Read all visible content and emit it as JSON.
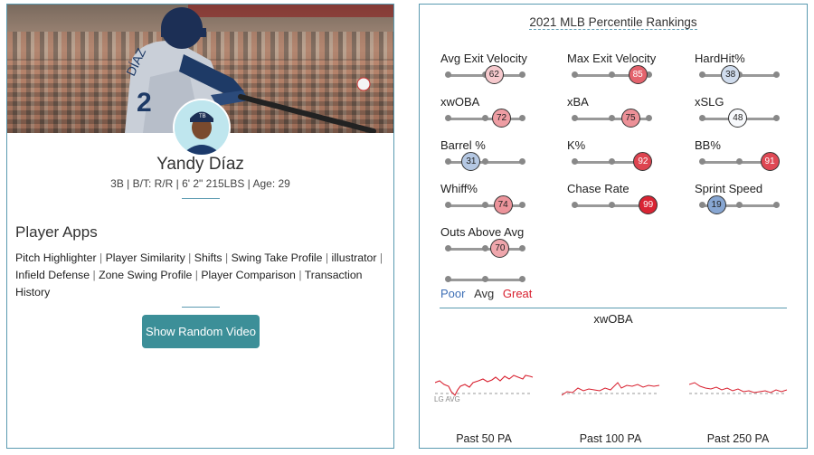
{
  "player": {
    "name": "Yandy Díaz",
    "info": "3B | B/T: R/R | 6' 2\" 215LBS | Age: 29",
    "jersey_text": "DÍAZ 2"
  },
  "apps": {
    "title": "Player Apps",
    "items": [
      "Pitch Highlighter",
      "Player Similarity",
      "Shifts",
      "Swing Take Profile",
      "illustrator",
      "Infield Defense",
      "Zone Swing Profile",
      "Player Comparison",
      "Transaction History"
    ],
    "separator": " | "
  },
  "random_video_button": "Show Random Video",
  "rankings": {
    "title": "2021 MLB Percentile Rankings",
    "metrics": [
      {
        "label": "Avg Exit Velocity",
        "value": 62
      },
      {
        "label": "Max Exit Velocity",
        "value": 85
      },
      {
        "label": "HardHit%",
        "value": 38
      },
      {
        "label": "xwOBA",
        "value": 72
      },
      {
        "label": "xBA",
        "value": 75
      },
      {
        "label": "xSLG",
        "value": 48
      },
      {
        "label": "Barrel %",
        "value": 31
      },
      {
        "label": "K%",
        "value": 92
      },
      {
        "label": "BB%",
        "value": 91
      },
      {
        "label": "Whiff%",
        "value": 74
      },
      {
        "label": "Chase Rate",
        "value": 99
      },
      {
        "label": "Sprint Speed",
        "value": 19
      },
      {
        "label": "Outs Above Avg",
        "value": 70
      }
    ],
    "legend": {
      "poor": "Poor",
      "avg": "Avg",
      "great": "Great"
    },
    "colors": {
      "poor": "#3d6fb6",
      "great": "#d8202f",
      "neutral": "#ffffff"
    }
  },
  "xwoba": {
    "title": "xwOBA",
    "lg_avg": "LG AVG",
    "panels": [
      {
        "label": "Past 50 PA"
      },
      {
        "label": "Past 100 PA"
      },
      {
        "label": "Past 250 PA"
      }
    ]
  }
}
